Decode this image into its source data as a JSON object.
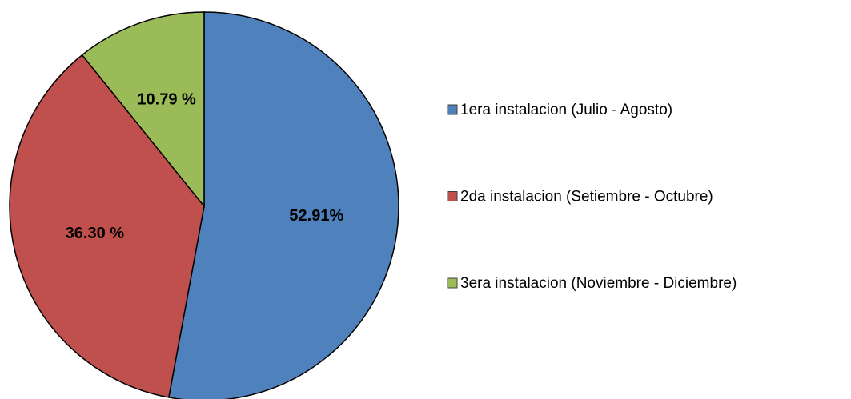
{
  "chart_data": {
    "type": "pie",
    "categories": [
      "1era instalacion (Julio - Agosto)",
      "2da instalacion (Setiembre - Octubre)",
      "3era instalacion (Noviembre - Diciembre)"
    ],
    "values": [
      52.91,
      36.3,
      10.79
    ],
    "value_labels": [
      "52.91%",
      "36.30 %",
      "10.79 %"
    ],
    "colors": [
      "#4f81bd",
      "#c0504d",
      "#9bbb59"
    ],
    "legend": "right"
  }
}
